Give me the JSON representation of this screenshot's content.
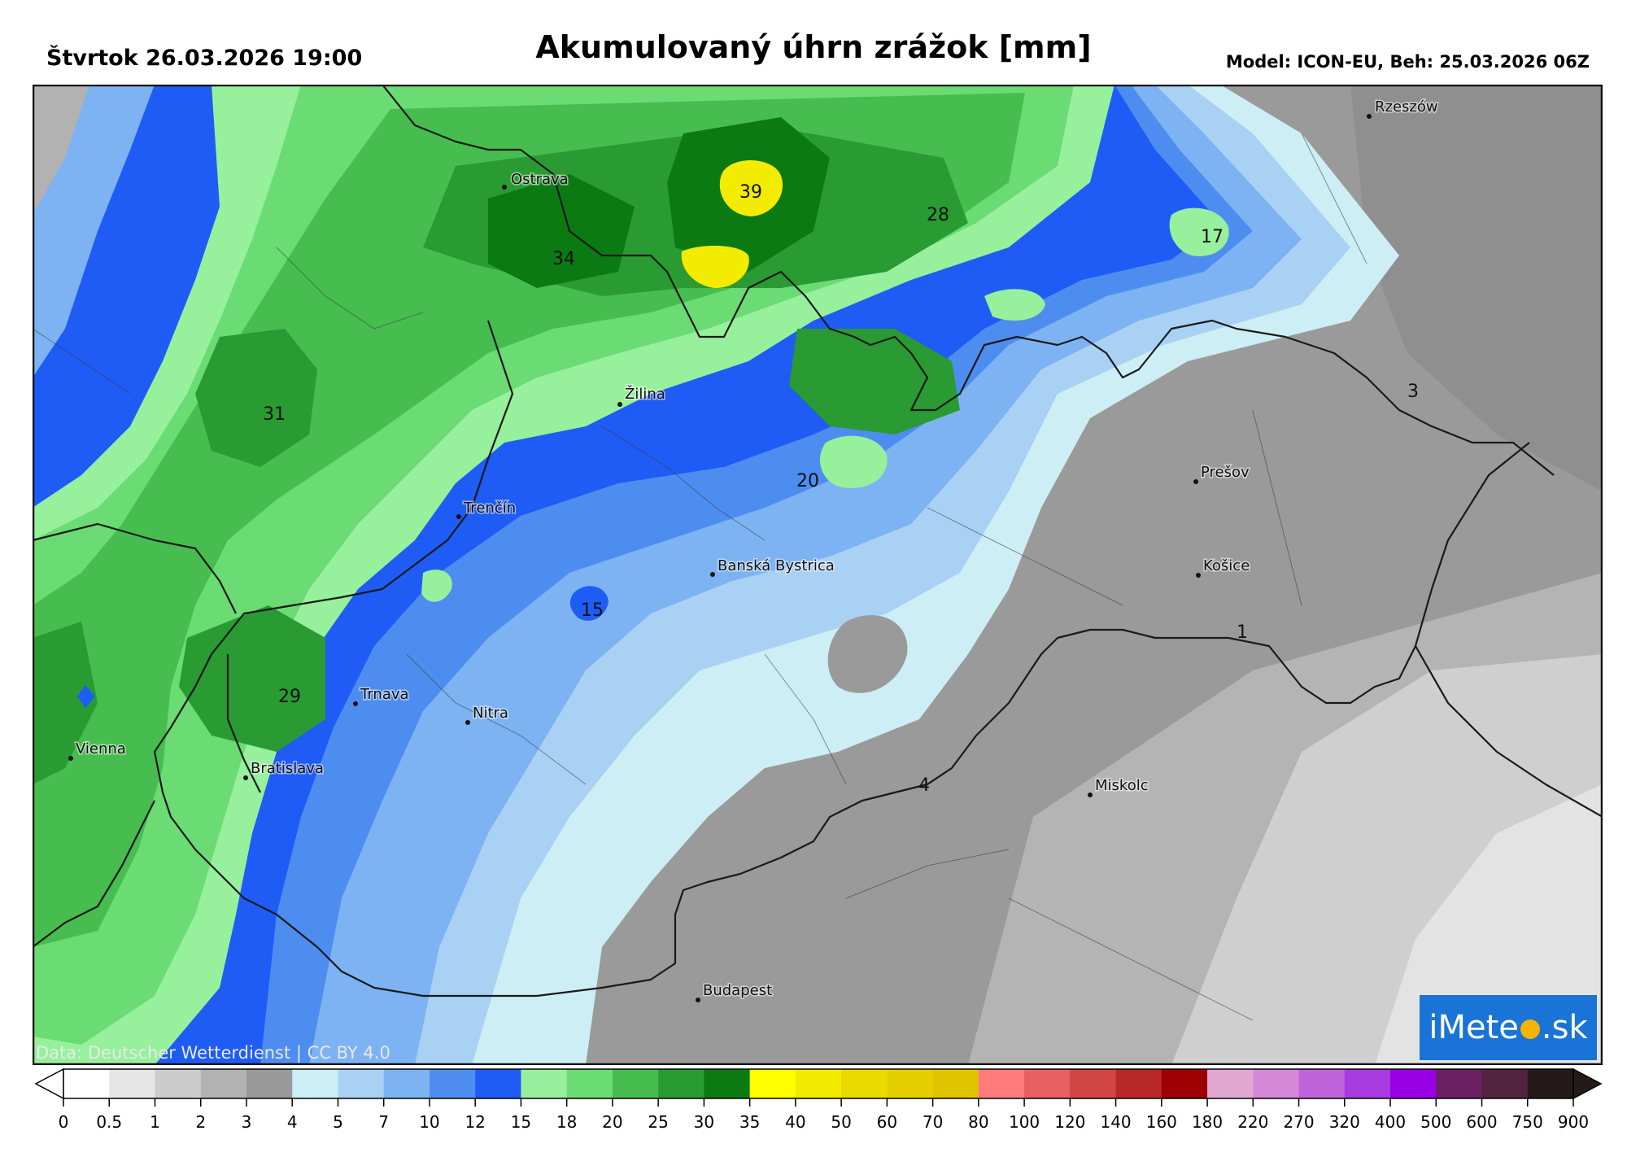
{
  "header": {
    "date": "Štvrtok 26.03.2026 19:00",
    "title": "Akumulovaný úhrn zrážok [mm]",
    "model": "Model: ICON-EU, Beh: 25.03.2026 06Z"
  },
  "cities": [
    {
      "name": "Ostrava",
      "dot": [
        580,
        126
      ],
      "label": [
        588,
        122
      ]
    },
    {
      "name": "Rzeszów",
      "dot": [
        1643,
        39
      ],
      "label": [
        1650,
        33
      ]
    },
    {
      "name": "Žilina",
      "dot": [
        722,
        393
      ],
      "label": [
        728,
        386
      ]
    },
    {
      "name": "Trenčín",
      "dot": [
        524,
        531
      ],
      "label": [
        530,
        526
      ]
    },
    {
      "name": "Prešov",
      "dot": [
        1430,
        488
      ],
      "label": [
        1436,
        482
      ]
    },
    {
      "name": "Banská Bystrica",
      "dot": [
        836,
        602
      ],
      "label": [
        842,
        597
      ]
    },
    {
      "name": "Košice",
      "dot": [
        1433,
        603
      ],
      "label": [
        1439,
        597
      ]
    },
    {
      "name": "Trnava",
      "dot": [
        397,
        761
      ],
      "label": [
        403,
        755
      ]
    },
    {
      "name": "Nitra",
      "dot": [
        535,
        784
      ],
      "label": [
        541,
        778
      ]
    },
    {
      "name": "Vienna",
      "dot": [
        47,
        828
      ],
      "label": [
        53,
        822
      ]
    },
    {
      "name": "Bratislava",
      "dot": [
        262,
        852
      ],
      "label": [
        268,
        846
      ]
    },
    {
      "name": "Miskolc",
      "dot": [
        1300,
        873
      ],
      "label": [
        1306,
        867
      ]
    },
    {
      "name": "Budapest",
      "dot": [
        818,
        1125
      ],
      "label": [
        824,
        1119
      ]
    }
  ],
  "values": [
    {
      "text": "39",
      "pos": [
        883,
        133
      ]
    },
    {
      "text": "28",
      "pos": [
        1113,
        161
      ]
    },
    {
      "text": "34",
      "pos": [
        653,
        215
      ]
    },
    {
      "text": "17",
      "pos": [
        1450,
        188
      ]
    },
    {
      "text": "31",
      "pos": [
        297,
        406
      ]
    },
    {
      "text": "3",
      "pos": [
        1697,
        378
      ]
    },
    {
      "text": "20",
      "pos": [
        953,
        488
      ]
    },
    {
      "text": "15",
      "pos": [
        688,
        647
      ]
    },
    {
      "text": "1",
      "pos": [
        1487,
        674
      ]
    },
    {
      "text": "29",
      "pos": [
        316,
        753
      ]
    },
    {
      "text": "4",
      "pos": [
        1096,
        862
      ]
    }
  ],
  "credit": "Data: Deutscher Wetterdienst | CC BY 4.0",
  "logo": {
    "pre": "iMete",
    "post": ".sk"
  },
  "legend": {
    "ticks": [
      "0",
      "0.5",
      "1",
      "2",
      "3",
      "4",
      "5",
      "7",
      "10",
      "12",
      "15",
      "18",
      "20",
      "25",
      "30",
      "35",
      "40",
      "50",
      "60",
      "70",
      "80",
      "100",
      "120",
      "140",
      "160",
      "180",
      "220",
      "270",
      "320",
      "400",
      "500",
      "600",
      "750",
      "900"
    ],
    "colors": [
      "#ffffff",
      "#e6e6e6",
      "#cccccc",
      "#b2b2b2",
      "#999999",
      "#cdeef4",
      "#a8d1f4",
      "#7db3f2",
      "#4e8df0",
      "#1f5cf5",
      "#97f09c",
      "#6bdb74",
      "#47bd50",
      "#2a9a33",
      "#0b7a13",
      "#ffff00",
      "#f3ec00",
      "#eada00",
      "#e6cf00",
      "#e0c400",
      "#ff7c7c",
      "#e86060",
      "#d24545",
      "#b82828",
      "#9c0000",
      "#e2a8d2",
      "#d488d8",
      "#c064dc",
      "#a83ce0",
      "#9a00e6",
      "#6a2060",
      "#52243e",
      "#241a1a"
    ]
  }
}
